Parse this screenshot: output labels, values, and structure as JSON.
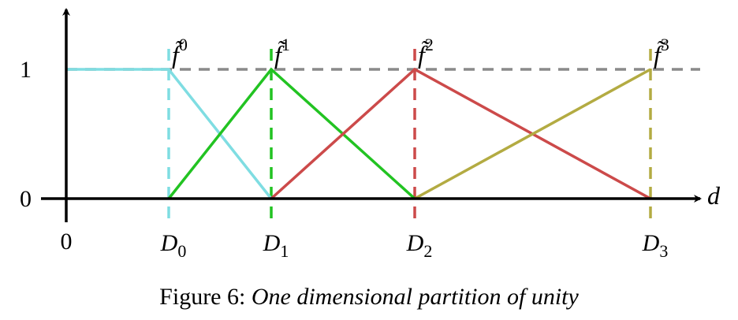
{
  "chart_data": {
    "type": "line",
    "title": "",
    "xlabel": "d",
    "ylabel": "",
    "x_origin_label": "0",
    "ylim": [
      0,
      1
    ],
    "y_ticks": [
      {
        "value": 0,
        "label": "0"
      },
      {
        "value": 1,
        "label": "1"
      }
    ],
    "nodes": [
      {
        "name": "D",
        "sub": "0",
        "x": 1.0
      },
      {
        "name": "D",
        "sub": "1",
        "x": 2.0
      },
      {
        "name": "D",
        "sub": "2",
        "x": 3.4
      },
      {
        "name": "D",
        "sub": "3",
        "x": 5.7
      }
    ],
    "series": [
      {
        "name": "f̃",
        "sup": "0",
        "color": "#7fdde2",
        "points": [
          [
            0,
            1
          ],
          [
            1.0,
            1
          ],
          [
            2.0,
            0
          ]
        ]
      },
      {
        "name": "f̃",
        "sup": "1",
        "color": "#22c322",
        "points": [
          [
            1.0,
            0
          ],
          [
            2.0,
            1
          ],
          [
            3.4,
            0
          ]
        ]
      },
      {
        "name": "f̃",
        "sup": "2",
        "color": "#cc4a4a",
        "points": [
          [
            2.0,
            0
          ],
          [
            3.4,
            1
          ],
          [
            5.7,
            0
          ]
        ]
      },
      {
        "name": "f̃",
        "sup": "3",
        "color": "#b3ab42",
        "points": [
          [
            3.4,
            0
          ],
          [
            5.7,
            1
          ]
        ]
      }
    ],
    "reference_line": {
      "y": 1,
      "color": "#8a8a8a"
    }
  },
  "caption": {
    "prefix": "Figure 6:",
    "text": "One dimensional partition of unity"
  }
}
